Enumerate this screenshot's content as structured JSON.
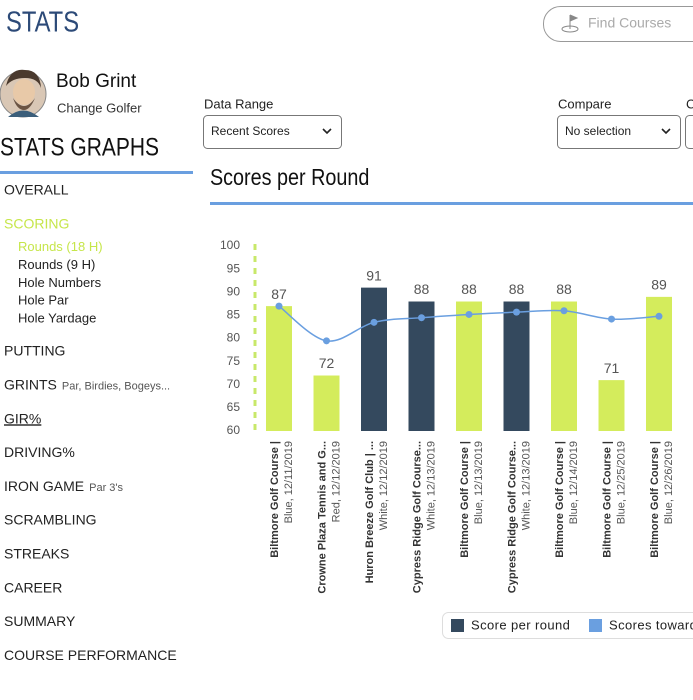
{
  "header": {
    "title": "STATS",
    "search_placeholder": "Find Courses"
  },
  "profile": {
    "name": "Bob Grint",
    "action": "Change Golfer"
  },
  "sidebar": {
    "title": "STATS GRAPHS",
    "items": [
      {
        "label": "OVERALL"
      },
      {
        "label": "SCORING",
        "active": true,
        "subitems": [
          {
            "label": "Rounds (18 H)",
            "active": true
          },
          {
            "label": "Rounds (9 H)"
          },
          {
            "label": "Hole Numbers"
          },
          {
            "label": "Hole Par"
          },
          {
            "label": "Hole Yardage"
          }
        ]
      },
      {
        "label": "PUTTING"
      },
      {
        "label": "GRINTS",
        "note": "Par, Birdies, Bogeys..."
      },
      {
        "label": "GIR%",
        "underline": true
      },
      {
        "label": "DRIVING%"
      },
      {
        "label": "IRON GAME",
        "note": "Par 3's"
      },
      {
        "label": "SCRAMBLING"
      },
      {
        "label": "STREAKS"
      },
      {
        "label": "CAREER"
      },
      {
        "label": "SUMMARY"
      },
      {
        "label": "COURSE PERFORMANCE"
      }
    ]
  },
  "controls": [
    {
      "label": "Data Range",
      "value": "Recent Scores"
    },
    {
      "label": "Compare",
      "value": "No selection"
    },
    {
      "label": "C"
    }
  ],
  "chart_data": {
    "type": "bar",
    "title": "Scores per Round",
    "categories": [
      "Biltmore Golf Course |",
      "Crowne Plaza Tennis and G...",
      "Huron Breeze Golf Club | ...",
      "Cypress Ridge Golf Course...",
      "Biltmore Golf Course |",
      "Cypress Ridge Golf Course...",
      "Biltmore Golf Course |",
      "Biltmore Golf Course |",
      "Biltmore Golf Course |"
    ],
    "category_details": [
      "Blue, 12/11/2019",
      "Red, 12/12/2019",
      "White, 12/12/2019",
      "White, 12/13/2019",
      "Blue, 12/13/2019",
      "White, 12/13/2019",
      "Blue, 12/14/2019",
      "Blue, 12/25/2019",
      "Blue, 12/26/2019"
    ],
    "series": [
      {
        "name": "Score per round",
        "type": "bar",
        "color": "#34495e",
        "bar_colors": [
          "#d4ec5c",
          "#d4ec5c",
          "#34495e",
          "#34495e",
          "#d4ec5c",
          "#34495e",
          "#d4ec5c",
          "#d4ec5c",
          "#d4ec5c"
        ],
        "values": [
          87,
          72,
          91,
          88,
          88,
          88,
          88,
          71,
          89
        ]
      },
      {
        "name": "Scores toward",
        "type": "line",
        "color": "#6a9fe0",
        "values": [
          87,
          79.5,
          83.5,
          84.5,
          85.2,
          85.7,
          86,
          84.2,
          84.8
        ]
      }
    ],
    "ylim": [
      60,
      100
    ],
    "yticks": [
      60,
      65,
      70,
      75,
      80,
      85,
      90,
      95,
      100
    ]
  }
}
